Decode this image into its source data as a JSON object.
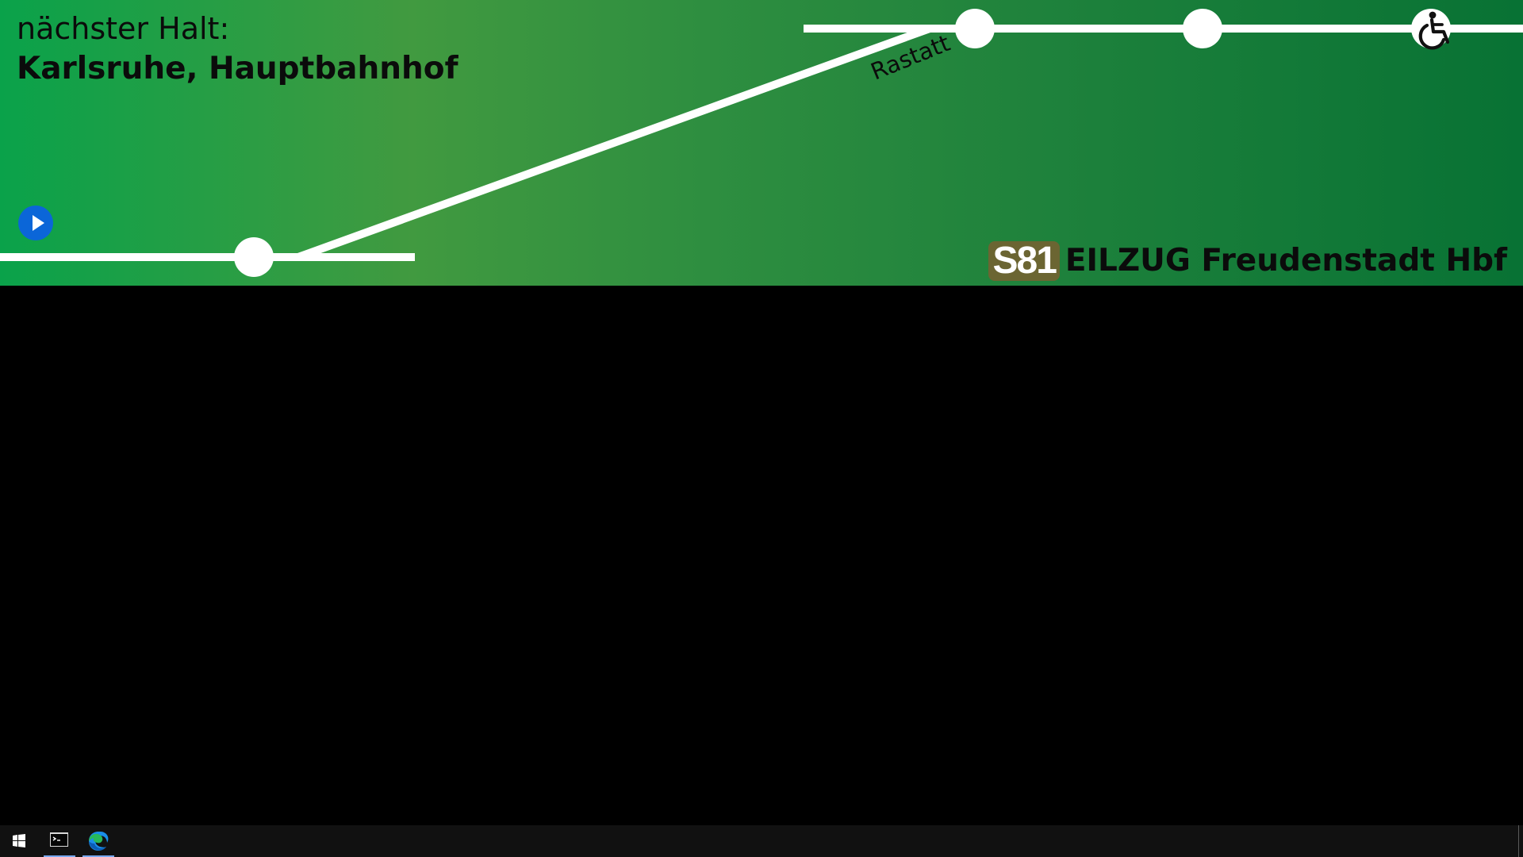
{
  "display": {
    "next_stop_label": "nächster Halt:",
    "next_stop_name": "Karlsruhe, Hauptbahnhof",
    "station_label": "Rastatt",
    "line_badge": "S81",
    "destination": "EILZUG Freudenstadt Hbf"
  },
  "colors": {
    "route_line": "#ffffff",
    "play_button": "#0b66d8",
    "line_badge": "#6b6532"
  },
  "icons": {
    "play": "play-icon",
    "accessibility": "wheelchair-icon",
    "start": "windows-start-icon",
    "terminal": "terminal-icon",
    "browser": "edge-icon"
  }
}
